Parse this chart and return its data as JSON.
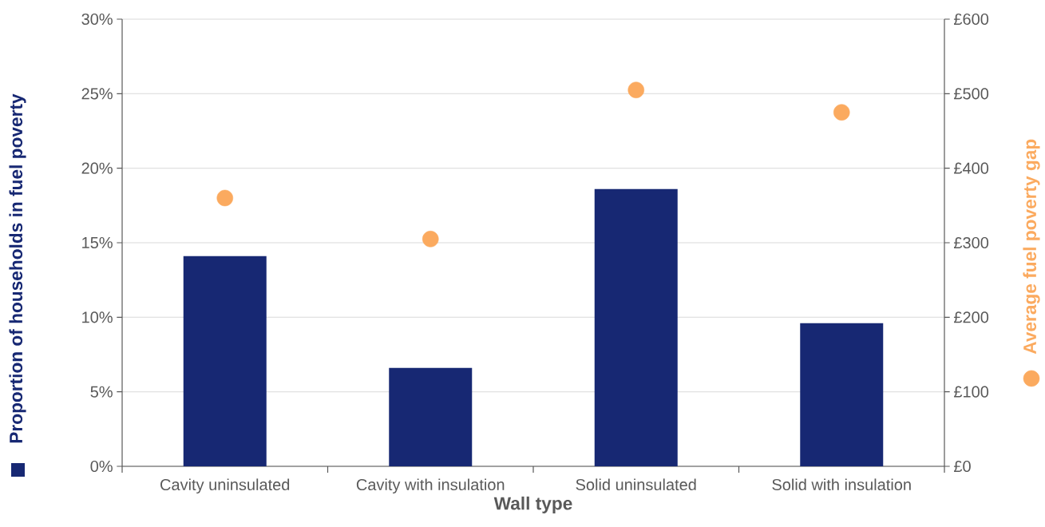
{
  "chart_data": {
    "type": "bar",
    "xlabel": "Wall type",
    "ylabel": "Proportion of households in fuel poverty",
    "y2label": "Average fuel poverty gap",
    "categories": [
      "Cavity uninsulated",
      "Cavity with insulation",
      "Solid uninsulated",
      "Solid with insulation"
    ],
    "series": [
      {
        "color": "#172873",
        "values": [
          14.1,
          6.6,
          18.6,
          9.6
        ]
      },
      {
        "type": "scatter",
        "axis": "y2",
        "color": "#fbaa5f",
        "values": [
          360,
          305,
          505,
          475
        ]
      }
    ],
    "ylim": [
      0,
      30
    ],
    "yticks": [
      {
        "value": 0,
        "label": "0%"
      },
      {
        "value": 5,
        "label": "5%"
      },
      {
        "value": 10,
        "label": "10%"
      },
      {
        "value": 15,
        "label": "15%"
      },
      {
        "value": 20,
        "label": "20%"
      },
      {
        "value": 25,
        "label": "25%"
      },
      {
        "value": 30,
        "label": "30%"
      }
    ],
    "y2lim": [
      0,
      600
    ],
    "y2ticks": [
      {
        "value": 0,
        "label": "£0"
      },
      {
        "value": 100,
        "label": "£100"
      },
      {
        "value": 200,
        "label": "£200"
      },
      {
        "value": 300,
        "label": "£300"
      },
      {
        "value": 400,
        "label": "£400"
      },
      {
        "value": 500,
        "label": "£500"
      },
      {
        "value": 600,
        "label": "£600"
      }
    ],
    "grid": "y",
    "marker": "circle"
  }
}
